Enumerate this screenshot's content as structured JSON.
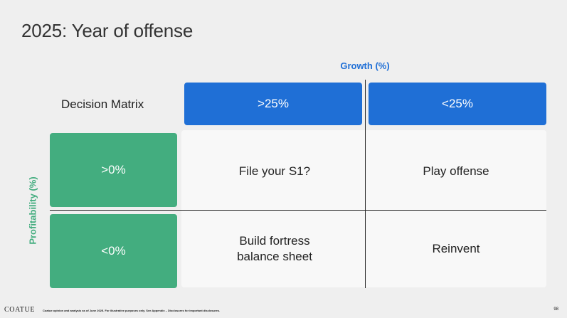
{
  "slide": {
    "title": "2025: Year of offense",
    "page_number": "98"
  },
  "matrix": {
    "label": "Decision Matrix",
    "column_axis_label": "Growth (%)",
    "row_axis_label": "Profitability (%)",
    "columns": [
      ">25%",
      "<25%"
    ],
    "rows": [
      ">0%",
      "<0%"
    ],
    "cells": [
      [
        "File your S1?",
        "Play offense"
      ],
      [
        "Build fortress\nbalance sheet",
        "Reinvent"
      ]
    ]
  },
  "footer": {
    "logo": "COATUE",
    "disclaimer": "Coatue opinion and analysis as of June 2025. For illustrative purposes only. See Appendix – Disclosures for important disclosures."
  },
  "colors": {
    "column_header": "#1f6fd6",
    "row_header": "#43ad7f",
    "background": "#efefef",
    "cell_background": "#f8f8f8"
  }
}
